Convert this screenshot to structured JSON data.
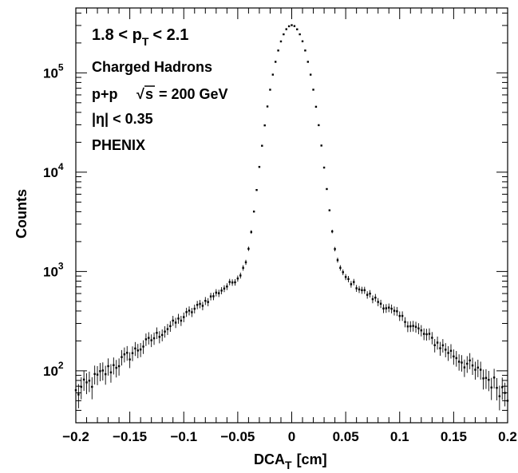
{
  "chart_data": {
    "type": "scatter",
    "x_ticks_major": [
      "−0.2",
      "−0.15",
      "−0.1",
      "−0.05",
      "0",
      "0.05",
      "0.1",
      "0.15",
      "0.2"
    ],
    "x_tick_values": [
      -0.2,
      -0.15,
      -0.1,
      -0.05,
      0,
      0.05,
      0.1,
      0.15,
      0.2
    ],
    "y_ticks": [
      {
        "value": 100,
        "base": "10",
        "exp": "2"
      },
      {
        "value": 1000,
        "base": "10",
        "exp": "3"
      },
      {
        "value": 10000,
        "base": "10",
        "exp": "4"
      },
      {
        "value": 100000,
        "base": "10",
        "exp": "5"
      }
    ],
    "xlim": [
      -0.2,
      0.2
    ],
    "ylim": [
      30,
      450000
    ],
    "yscale": "log",
    "xlabel": {
      "main": "DCA",
      "sub": "T",
      "unit": "[cm]"
    },
    "ylabel": "Counts",
    "annotations": {
      "pt_line": {
        "left": "1.8 < p",
        "sub": "T",
        "right": "< 2.1"
      },
      "species": "Charged Hadrons",
      "system": {
        "left": "p+p",
        "sqrt": "√",
        "s": "s",
        "right": "= 200 GeV"
      },
      "eta": "|η| < 0.35",
      "experiment": "PHENIX"
    },
    "profile": {
      "peak": 300000,
      "core_sigma": 0.0115,
      "tail_at_0.05": 850,
      "tail_at_0.2": 60,
      "bin_width": 0.0025
    }
  }
}
